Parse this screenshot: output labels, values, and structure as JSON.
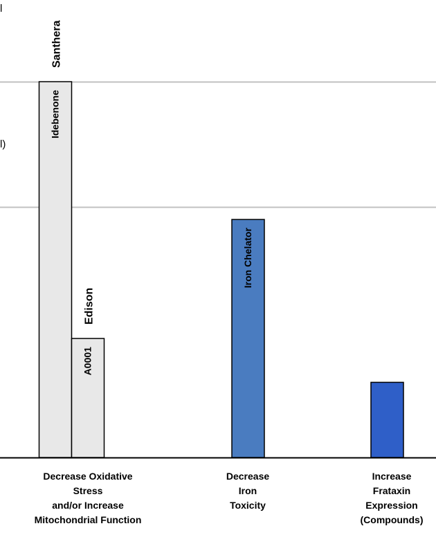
{
  "chart_data": {
    "type": "bar",
    "title": "",
    "xlabel": "",
    "ylabel": "",
    "ylim": [
      0,
      300
    ],
    "grid": true,
    "categories": [
      {
        "label_lines": [
          "Decrease Oxidative",
          "Stress",
          "and/or Increase",
          "Mitochondrial Function"
        ]
      },
      {
        "label_lines": [
          "Decrease",
          "Iron",
          "Toxicity"
        ]
      },
      {
        "label_lines": [
          "Increase",
          "Frataxin",
          "Expression",
          "(Compounds)"
        ]
      }
    ],
    "bars": [
      {
        "category_index": 0,
        "slot": 0,
        "value": 300,
        "inside_label": "Idebenone",
        "above_label": "Santhera",
        "color": "#e8e8e8"
      },
      {
        "category_index": 0,
        "slot": 1,
        "value": 95,
        "inside_label": "A0001",
        "above_label": "Edison",
        "color": "#e8e8e8"
      },
      {
        "category_index": 1,
        "slot": 0,
        "value": 190,
        "inside_label": "Iron Chelator",
        "above_label": "",
        "color": "#4a7cc0"
      },
      {
        "category_index": 2,
        "slot": 0,
        "value": 60,
        "inside_label": "",
        "above_label": "",
        "color": "#2f5fc8"
      }
    ],
    "edge_text": [
      "l",
      "l)"
    ]
  }
}
